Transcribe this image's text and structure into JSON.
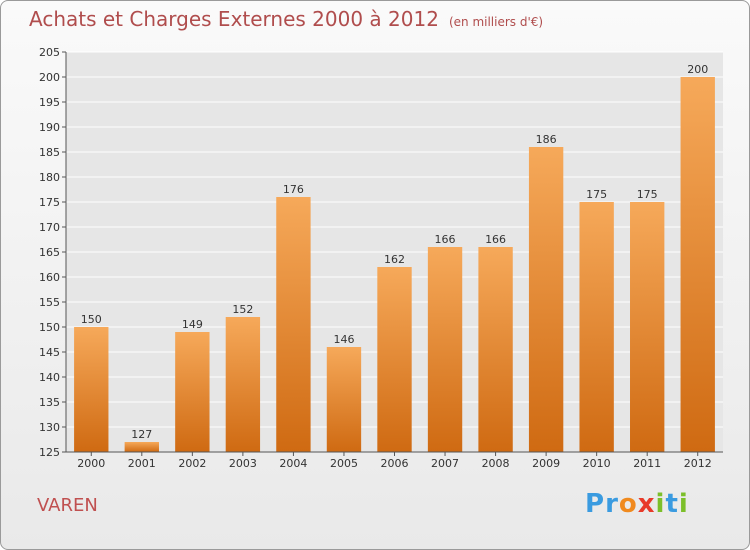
{
  "title": "Achats et Charges Externes 2000 à 2012",
  "unit": "(en milliers d'€)",
  "commune": "VAREN",
  "logo": {
    "letters": [
      "P",
      "r",
      "o",
      "x",
      "i",
      "t",
      "i"
    ],
    "colors": [
      "#3a9be0",
      "#3a9be0",
      "#f08a1e",
      "#e83a2a",
      "#7cbf2a",
      "#3a9be0",
      "#7cbf2a"
    ]
  },
  "colors": {
    "bar_top": "#f6a95a",
    "bar_bottom": "#cf6a12",
    "title": "#b04d4d"
  },
  "chart_data": {
    "type": "bar",
    "categories": [
      "2000",
      "2001",
      "2002",
      "2003",
      "2004",
      "2005",
      "2006",
      "2007",
      "2008",
      "2009",
      "2010",
      "2011",
      "2012"
    ],
    "values": [
      150,
      127,
      149,
      152,
      176,
      146,
      162,
      166,
      166,
      186,
      175,
      175,
      200
    ],
    "ylim": [
      125,
      205
    ],
    "yticks": [
      125,
      130,
      135,
      140,
      145,
      150,
      155,
      160,
      165,
      170,
      175,
      180,
      185,
      190,
      195,
      200,
      205
    ],
    "grid": true
  }
}
